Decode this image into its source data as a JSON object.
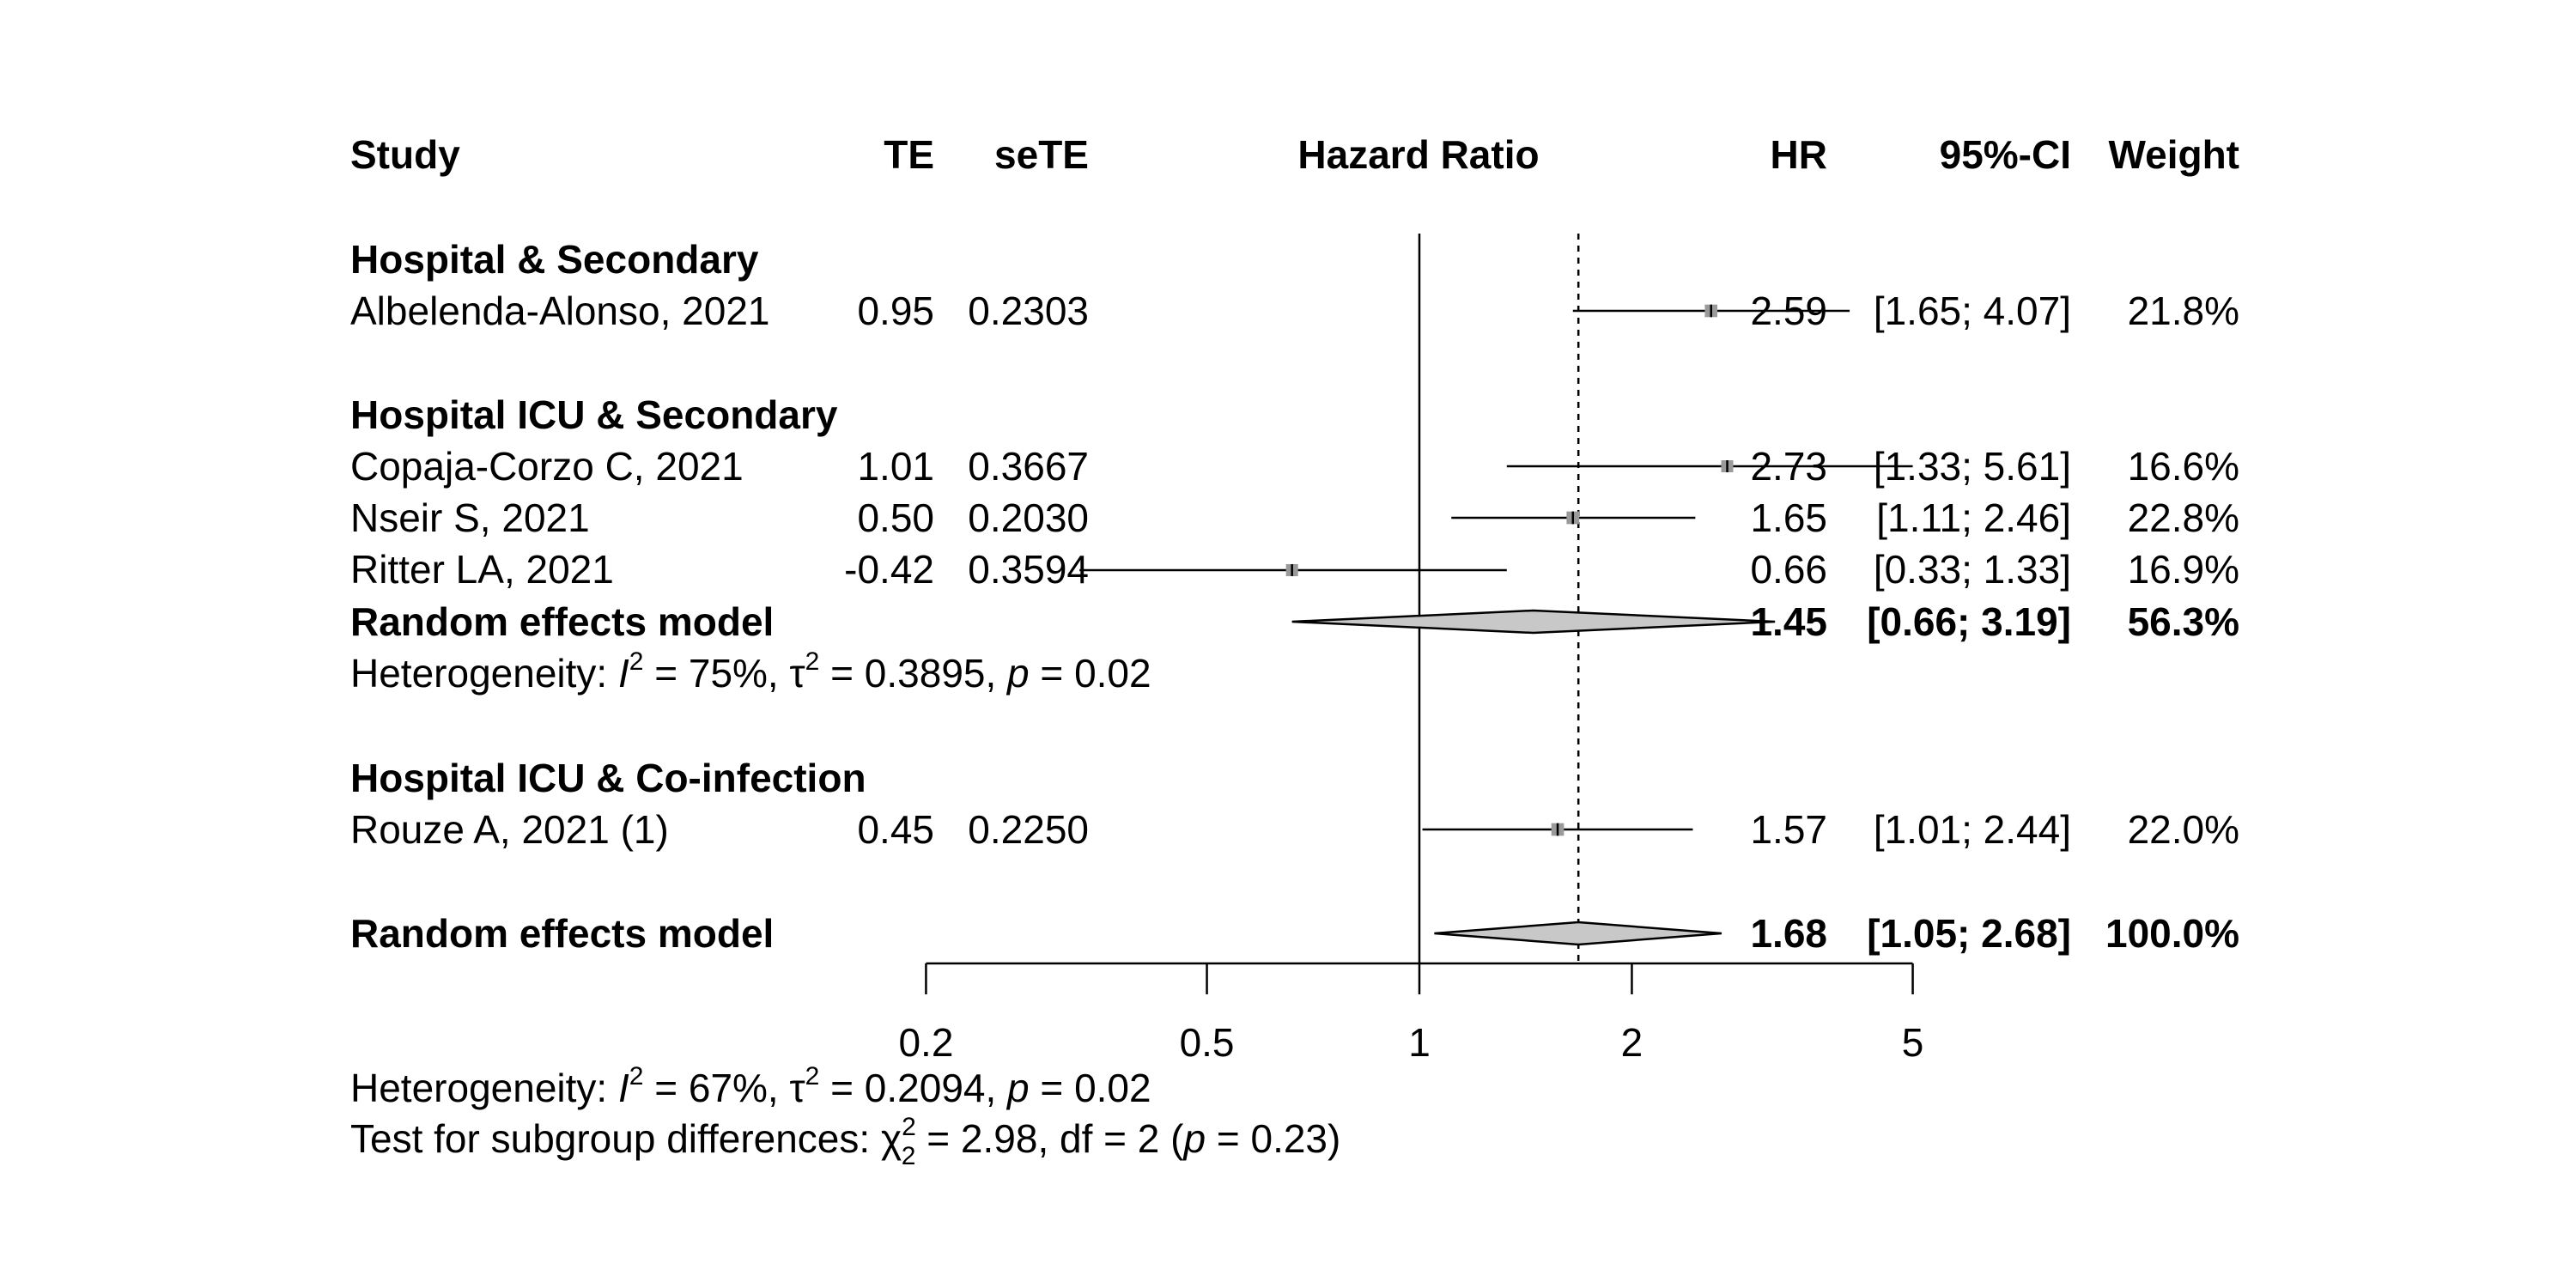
{
  "chart_data": {
    "type": "forest",
    "columns": {
      "study": "Study",
      "te": "TE",
      "sete": "seTE",
      "plot": "Hazard Ratio",
      "hr": "HR",
      "ci": "95%-CI",
      "weight": "Weight"
    },
    "x_scale": "log",
    "x_ticks": [
      "0.2",
      "0.5",
      "1",
      "2",
      "5"
    ],
    "x_tick_values": [
      0.2,
      0.5,
      1,
      2,
      5
    ],
    "xlim": [
      0.2,
      5
    ],
    "overall_effect": 1.68,
    "subgroups": [
      {
        "label": "Hospital & Secondary",
        "studies": [
          {
            "study": "Albelenda-Alonso, 2021",
            "te": "0.95",
            "sete": "0.2303",
            "hr": "2.59",
            "ci": "[1.65; 4.07]",
            "weight": "21.8%",
            "hr_value": 2.59,
            "ci_low": 1.65,
            "ci_high": 4.07
          }
        ]
      },
      {
        "label": "Hospital ICU & Secondary",
        "studies": [
          {
            "study": "Copaja-Corzo C, 2021",
            "te": "1.01",
            "sete": "0.3667",
            "hr": "2.73",
            "ci": "[1.33; 5.61]",
            "weight": "16.6%",
            "hr_value": 2.73,
            "ci_low": 1.33,
            "ci_high": 5.61
          },
          {
            "study": "Nseir S, 2021",
            "te": "0.50",
            "sete": "0.2030",
            "hr": "1.65",
            "ci": "[1.11; 2.46]",
            "weight": "22.8%",
            "hr_value": 1.65,
            "ci_low": 1.11,
            "ci_high": 2.46
          },
          {
            "study": "Ritter LA, 2021",
            "te": "-0.42",
            "sete": "0.3594",
            "hr": "0.66",
            "ci": "[0.33; 1.33]",
            "weight": "16.9%",
            "hr_value": 0.66,
            "ci_low": 0.33,
            "ci_high": 1.33
          }
        ],
        "model": {
          "label": "Random effects model",
          "hr": "1.45",
          "ci": "[0.66; 3.19]",
          "weight": "56.3%",
          "hr_value": 1.45,
          "ci_low": 0.66,
          "ci_high": 3.19
        },
        "heterogeneity": {
          "prefix": "Heterogeneity: ",
          "i2": "I",
          "i2_value": " = 75%, ",
          "tau2": "τ",
          "tau2_value": " = 0.3895, ",
          "p": "p",
          "p_value": " = 0.02"
        }
      },
      {
        "label": "Hospital ICU & Co-infection",
        "studies": [
          {
            "study": "Rouze A, 2021 (1)",
            "te": "0.45",
            "sete": "0.2250",
            "hr": "1.57",
            "ci": "[1.01; 2.44]",
            "weight": "22.0%",
            "hr_value": 1.57,
            "ci_low": 1.01,
            "ci_high": 2.44
          }
        ]
      }
    ],
    "overall": {
      "label": "Random effects model",
      "hr": "1.68",
      "ci": "[1.05; 2.68]",
      "weight": "100.0%",
      "hr_value": 1.68,
      "ci_low": 1.05,
      "ci_high": 2.68
    },
    "overall_heterogeneity": {
      "prefix": "Heterogeneity: ",
      "i2": "I",
      "i2_value": " = 67%, ",
      "tau2": "τ",
      "tau2_value": " = 0.2094, ",
      "p": "p",
      "p_value": " = 0.02"
    },
    "subgroup_test": {
      "prefix": "Test for subgroup differences: ",
      "chi": "χ",
      "chi_sub": "2",
      "chi_sup": "2",
      "chi_value": " = 2.98, df = 2 (",
      "p": "p",
      "p_value": " = 0.23)"
    }
  }
}
